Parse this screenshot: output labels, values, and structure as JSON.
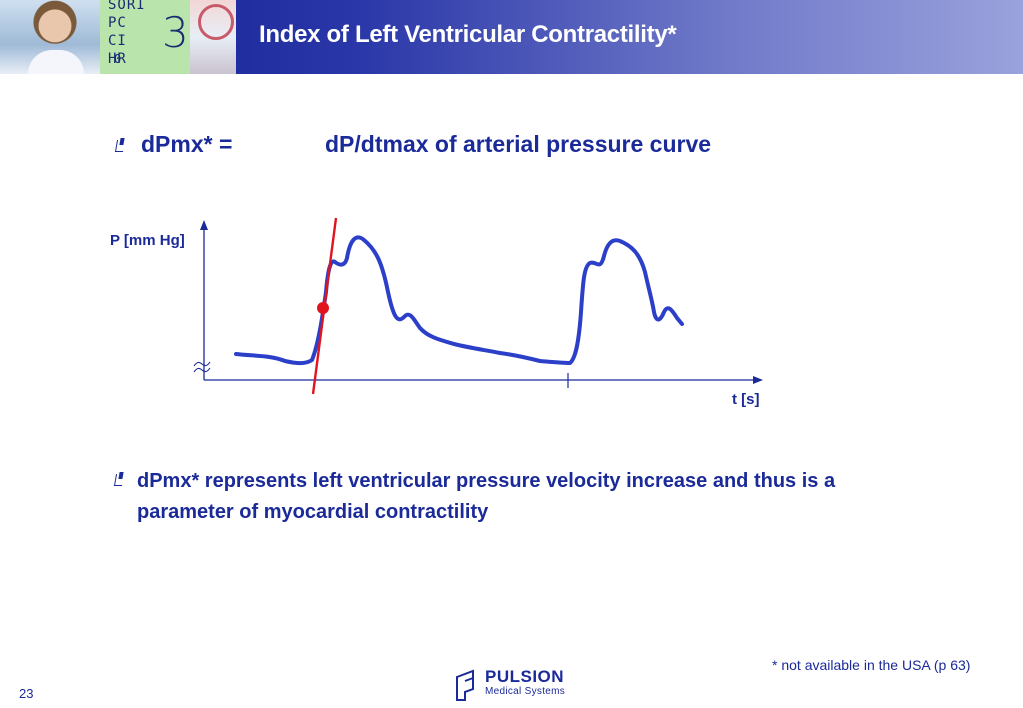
{
  "header": {
    "title": "Index of Left Ventricular Contractility*",
    "monitor_lines": "SORI\nPC\nCI\nHR",
    "monitor_number": "3",
    "monitor_zero": "0"
  },
  "bullets": {
    "first_term": "dPmx* =",
    "first_definition": "dP/dtmax of arterial pressure curve",
    "second_line1": "dPmx* represents left ventricular pressure velocity increase and thus is a",
    "second_line2": "parameter of myocardial contractility"
  },
  "diagram": {
    "y_axis_label": "P [mm Hg]",
    "x_axis_label": "t [s]",
    "curve_color": "#2b3fc8",
    "tangent_color": "#e0141e",
    "axis_color": "#1b2a99",
    "point_color": "#e0141e"
  },
  "footer": {
    "footnote": "* not available in the USA (p 63)",
    "page_number": "23",
    "logo_name": "PULSION",
    "logo_subtitle": "Medical Systems"
  }
}
